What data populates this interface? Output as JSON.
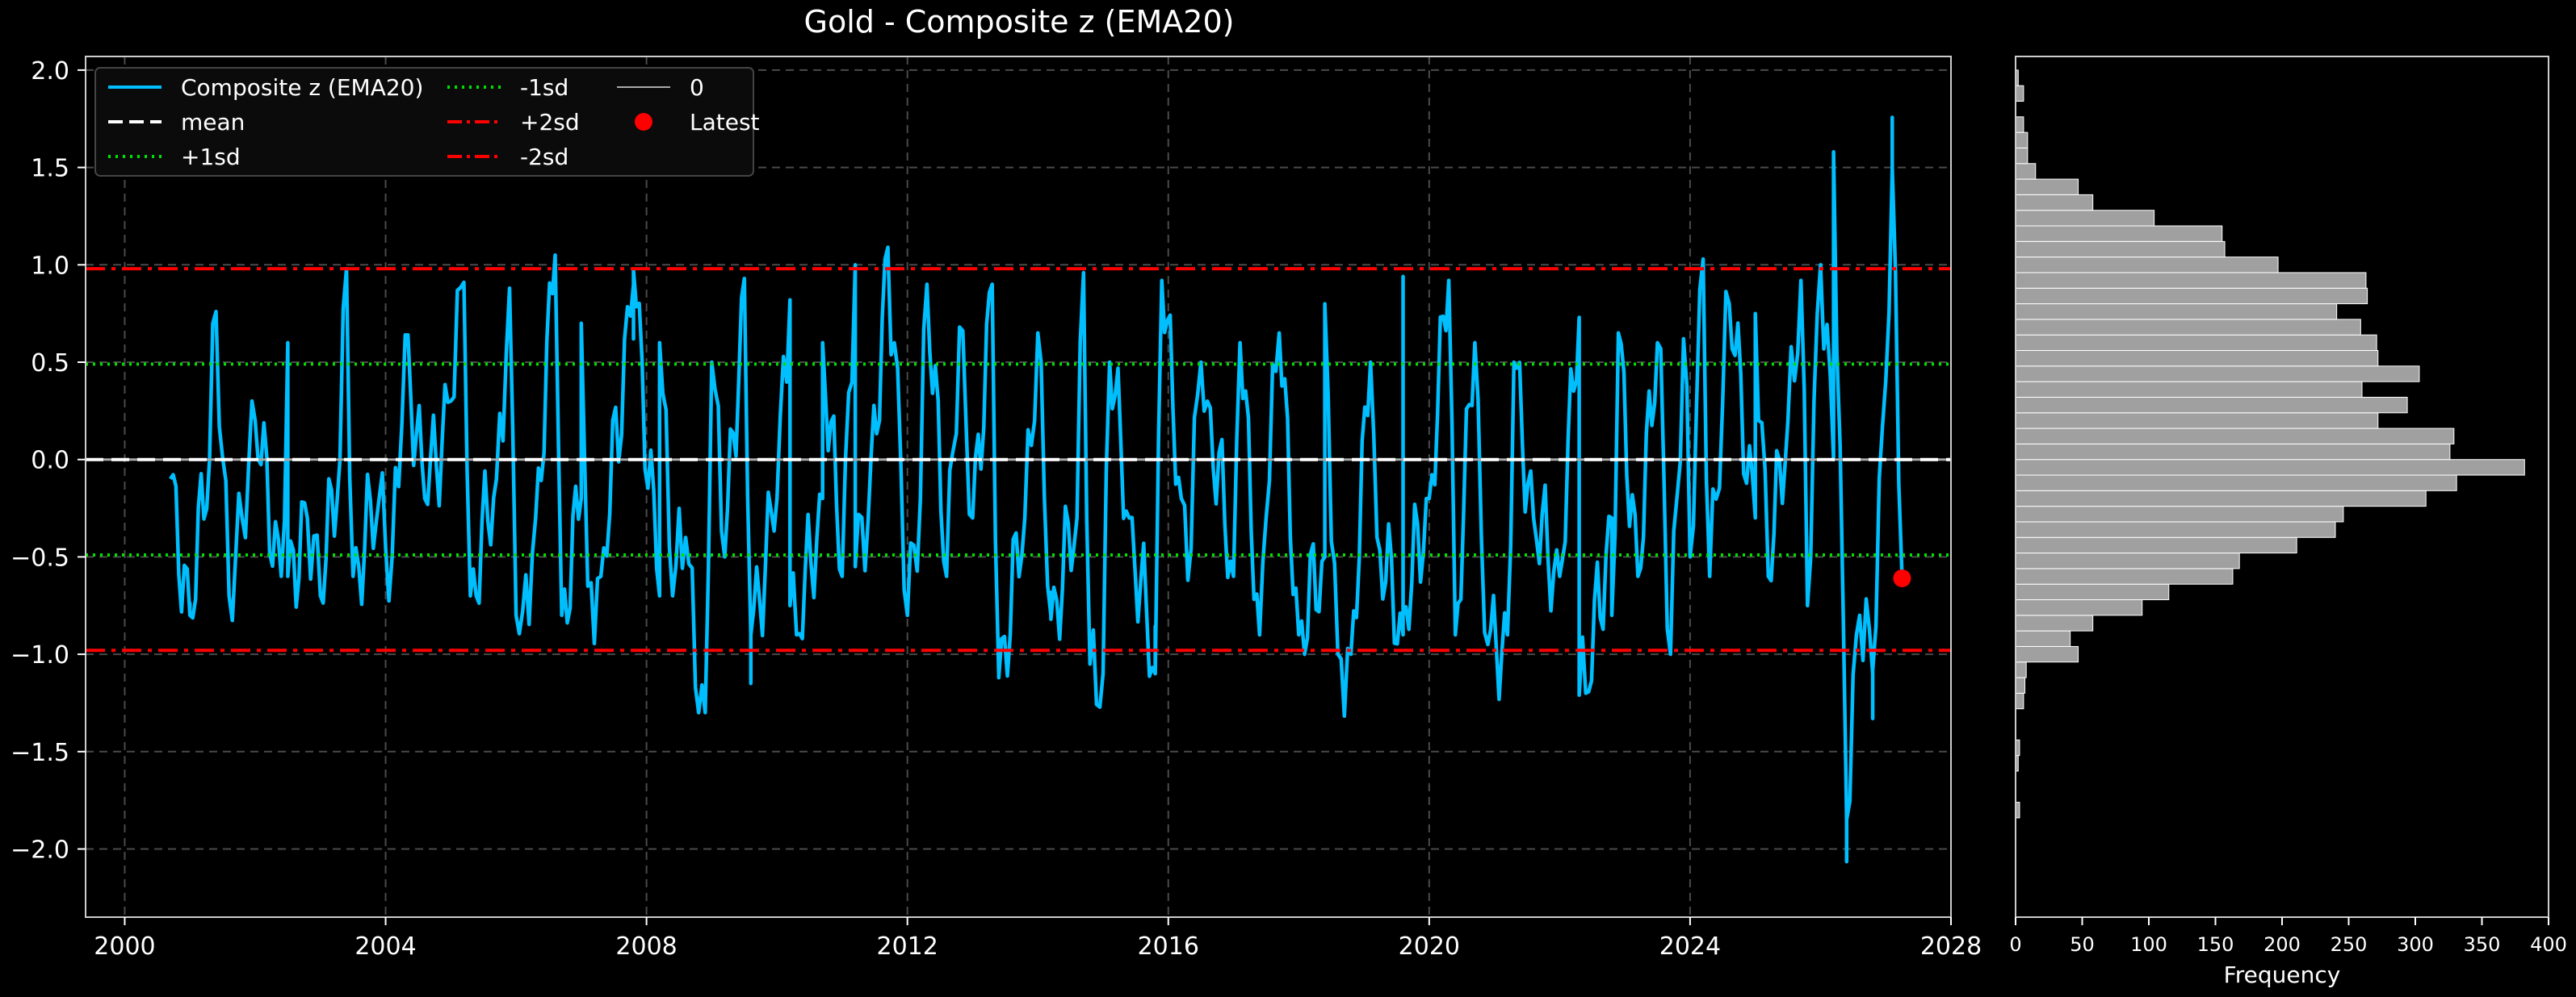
{
  "chart_data": [
    {
      "type": "line",
      "title": "Gold - Composite z (EMA20)",
      "xlabel": "",
      "ylabel": "",
      "xlim": [
        1999.4,
        2028.0
      ],
      "ylim": [
        -2.35,
        2.07
      ],
      "x_ticks": [
        2000,
        2004,
        2008,
        2012,
        2016,
        2020,
        2024,
        2028
      ],
      "y_ticks": [
        -2.0,
        -1.5,
        -1.0,
        -0.5,
        0.0,
        0.5,
        1.0,
        1.5,
        2.0
      ],
      "y_tick_labels": [
        "−2.0",
        "−1.5",
        "−1.0",
        "−0.5",
        "0.0",
        "0.5",
        "1.0",
        "1.5",
        "2.0"
      ],
      "grid": true,
      "legend_position": "top-left",
      "legend": [
        {
          "label": "Composite z (EMA20)",
          "style": "solid",
          "color": "#00bfff"
        },
        {
          "label": "mean",
          "style": "dashed",
          "color": "#ffffff"
        },
        {
          "label": "+1sd",
          "style": "dotted",
          "color": "#00e000"
        },
        {
          "label": "-1sd",
          "style": "dotted",
          "color": "#00e000"
        },
        {
          "label": "+2sd",
          "style": "dashdot",
          "color": "#ff0000"
        },
        {
          "label": "-2sd",
          "style": "dashdot",
          "color": "#ff0000"
        },
        {
          "label": "0",
          "style": "solid",
          "color": "#aaaaaa"
        },
        {
          "label": "Latest",
          "style": "marker",
          "color": "#ff0000"
        }
      ],
      "reference_lines": {
        "mean": 0.0,
        "plus_1sd": 0.49,
        "minus_1sd": -0.49,
        "plus_2sd": 0.98,
        "minus_2sd": -0.98,
        "zero": 0.0
      },
      "series": [
        {
          "name": "Composite z (EMA20)",
          "color": "#00bfff",
          "anchors": [
            [
              2000.7,
              -0.1
            ],
            [
              2001.0,
              -0.8
            ],
            [
              2001.3,
              0.0
            ],
            [
              2001.6,
              -0.7
            ],
            [
              2001.8,
              -0.3
            ],
            [
              2002.0,
              0.2
            ],
            [
              2002.4,
              -0.6
            ],
            [
              2002.8,
              -0.3
            ],
            [
              2003.0,
              -0.7
            ],
            [
              2003.3,
              0.0
            ],
            [
              2003.5,
              -0.6
            ],
            [
              2003.9,
              -0.2
            ],
            [
              2004.1,
              -0.5
            ],
            [
              2004.6,
              -0.2
            ],
            [
              2005.0,
              0.3
            ],
            [
              2005.3,
              -0.7
            ],
            [
              2005.7,
              -0.1
            ],
            [
              2006.0,
              -0.8
            ],
            [
              2006.3,
              -0.3
            ],
            [
              2006.7,
              -0.8
            ],
            [
              2007.0,
              -0.2
            ],
            [
              2007.3,
              -0.6
            ],
            [
              2007.8,
              0.9
            ],
            [
              2008.2,
              -0.7
            ],
            [
              2008.6,
              -0.4
            ],
            [
              2008.9,
              -1.3
            ],
            [
              2009.2,
              -0.5
            ],
            [
              2009.6,
              -0.9
            ],
            [
              2010.0,
              -0.2
            ],
            [
              2010.3,
              -0.9
            ],
            [
              2010.7,
              -0.2
            ],
            [
              2011.0,
              -0.6
            ],
            [
              2011.4,
              -0.3
            ],
            [
              2011.8,
              0.6
            ],
            [
              2012.2,
              -0.2
            ],
            [
              2012.6,
              -0.6
            ],
            [
              2013.0,
              -0.3
            ],
            [
              2013.4,
              -1.1
            ],
            [
              2013.8,
              -0.3
            ],
            [
              2014.2,
              -0.8
            ],
            [
              2014.6,
              -0.3
            ],
            [
              2015.0,
              -1.1
            ],
            [
              2015.4,
              -0.3
            ],
            [
              2015.8,
              -1.1
            ],
            [
              2016.2,
              -0.2
            ],
            [
              2016.6,
              0.3
            ],
            [
              2017.0,
              -0.6
            ],
            [
              2017.5,
              -0.3
            ],
            [
              2018.0,
              -0.9
            ],
            [
              2018.4,
              -0.5
            ],
            [
              2018.8,
              -1.0
            ],
            [
              2019.2,
              -0.4
            ],
            [
              2019.6,
              -0.9
            ],
            [
              2020.0,
              -0.2
            ],
            [
              2020.4,
              -0.9
            ],
            [
              2020.8,
              -0.4
            ],
            [
              2021.2,
              -0.9
            ],
            [
              2021.6,
              -0.3
            ],
            [
              2022.0,
              -0.6
            ],
            [
              2022.4,
              -1.2
            ],
            [
              2022.8,
              -0.3
            ],
            [
              2023.2,
              -0.6
            ],
            [
              2023.6,
              -0.1
            ],
            [
              2024.0,
              -0.5
            ],
            [
              2024.5,
              0.3
            ],
            [
              2025.0,
              -0.3
            ],
            [
              2025.5,
              0.2
            ],
            [
              2026.0,
              1.0
            ],
            [
              2026.2,
              0.0
            ],
            [
              2026.4,
              -1.85
            ],
            [
              2026.6,
              -0.8
            ],
            [
              2026.8,
              -1.1
            ],
            [
              2027.0,
              0.4
            ],
            [
              2027.1,
              1.5
            ],
            [
              2027.25,
              -0.6
            ]
          ],
          "peaks": [
            [
              2001.4,
              0.76
            ],
            [
              2002.5,
              0.6
            ],
            [
              2003.4,
              0.98
            ],
            [
              2004.3,
              0.64
            ],
            [
              2005.2,
              0.91
            ],
            [
              2005.9,
              0.88
            ],
            [
              2006.6,
              1.05
            ],
            [
              2007.0,
              0.7
            ],
            [
              2007.8,
              0.97
            ],
            [
              2008.2,
              0.6
            ],
            [
              2009.0,
              0.5
            ],
            [
              2009.5,
              0.93
            ],
            [
              2010.2,
              0.82
            ],
            [
              2010.7,
              0.6
            ],
            [
              2011.2,
              1.0
            ],
            [
              2011.7,
              1.09
            ],
            [
              2012.3,
              0.9
            ],
            [
              2012.8,
              0.68
            ],
            [
              2013.3,
              0.9
            ],
            [
              2014.0,
              0.65
            ],
            [
              2014.7,
              0.96
            ],
            [
              2015.1,
              0.5
            ],
            [
              2015.9,
              0.92
            ],
            [
              2016.5,
              0.5
            ],
            [
              2017.1,
              0.6
            ],
            [
              2017.7,
              0.65
            ],
            [
              2018.4,
              0.8
            ],
            [
              2019.1,
              0.5
            ],
            [
              2019.6,
              0.94
            ],
            [
              2020.3,
              0.92
            ],
            [
              2020.7,
              0.6
            ],
            [
              2021.3,
              0.5
            ],
            [
              2022.3,
              0.73
            ],
            [
              2022.9,
              0.65
            ],
            [
              2023.5,
              0.6
            ],
            [
              2023.9,
              0.62
            ],
            [
              2024.2,
              1.03
            ],
            [
              2024.6,
              0.8
            ],
            [
              2025.0,
              0.75
            ],
            [
              2025.7,
              0.92
            ],
            [
              2026.2,
              1.58
            ],
            [
              2027.1,
              1.5
            ]
          ],
          "troughs": [
            [
              2001.0,
              -0.8
            ],
            [
              2002.5,
              -0.6
            ],
            [
              2004.0,
              -0.45
            ],
            [
              2006.1,
              -0.78
            ],
            [
              2007.1,
              -0.65
            ],
            [
              2008.4,
              -0.7
            ],
            [
              2008.8,
              -1.3
            ],
            [
              2009.6,
              -0.9
            ],
            [
              2010.2,
              -0.75
            ],
            [
              2011.2,
              -0.55
            ],
            [
              2012.0,
              -0.8
            ],
            [
              2013.4,
              -1.12
            ],
            [
              2014.2,
              -0.82
            ],
            [
              2014.8,
              -1.05
            ],
            [
              2015.8,
              -1.1
            ],
            [
              2016.3,
              -0.62
            ],
            [
              2017.4,
              -0.9
            ],
            [
              2018.6,
              -1.0
            ],
            [
              2019.6,
              -0.8
            ],
            [
              2020.9,
              -0.95
            ],
            [
              2022.3,
              -1.21
            ],
            [
              2022.8,
              -0.8
            ],
            [
              2023.7,
              -1.0
            ],
            [
              2024.3,
              -0.6
            ],
            [
              2025.2,
              -0.6
            ],
            [
              2025.8,
              -0.75
            ],
            [
              2026.4,
              -1.85
            ],
            [
              2026.8,
              -1.08
            ]
          ]
        }
      ],
      "latest_marker": {
        "label": "Latest",
        "x": 2027.25,
        "y": -0.61,
        "color": "#ff0000"
      }
    },
    {
      "type": "bar",
      "orientation": "horizontal",
      "xlabel": "Frequency",
      "xlim": [
        0,
        400
      ],
      "x_ticks": [
        0,
        50,
        100,
        150,
        200,
        250,
        300,
        350,
        400
      ],
      "ylim": [
        -2.35,
        2.07
      ],
      "bar_color": "#a0a0a0",
      "bins": [
        {
          "y0": -1.84,
          "y1": -1.76,
          "count": 3
        },
        {
          "y0": -1.6,
          "y1": -1.52,
          "count": 2
        },
        {
          "y0": -1.52,
          "y1": -1.44,
          "count": 3
        },
        {
          "y0": -1.28,
          "y1": -1.2,
          "count": 6
        },
        {
          "y0": -1.2,
          "y1": -1.12,
          "count": 7
        },
        {
          "y0": -1.12,
          "y1": -1.04,
          "count": 8
        },
        {
          "y0": -1.04,
          "y1": -0.96,
          "count": 47
        },
        {
          "y0": -0.96,
          "y1": -0.88,
          "count": 41
        },
        {
          "y0": -0.88,
          "y1": -0.8,
          "count": 58
        },
        {
          "y0": -0.8,
          "y1": -0.72,
          "count": 95
        },
        {
          "y0": -0.72,
          "y1": -0.64,
          "count": 115
        },
        {
          "y0": -0.64,
          "y1": -0.56,
          "count": 163
        },
        {
          "y0": -0.56,
          "y1": -0.48,
          "count": 168
        },
        {
          "y0": -0.48,
          "y1": -0.4,
          "count": 211
        },
        {
          "y0": -0.4,
          "y1": -0.32,
          "count": 240
        },
        {
          "y0": -0.32,
          "y1": -0.24,
          "count": 246
        },
        {
          "y0": -0.24,
          "y1": -0.16,
          "count": 308
        },
        {
          "y0": -0.16,
          "y1": -0.08,
          "count": 331
        },
        {
          "y0": -0.08,
          "y1": 0.0,
          "count": 382
        },
        {
          "y0": 0.0,
          "y1": 0.08,
          "count": 326
        },
        {
          "y0": 0.08,
          "y1": 0.16,
          "count": 329
        },
        {
          "y0": 0.16,
          "y1": 0.24,
          "count": 272
        },
        {
          "y0": 0.24,
          "y1": 0.32,
          "count": 294
        },
        {
          "y0": 0.32,
          "y1": 0.4,
          "count": 260
        },
        {
          "y0": 0.4,
          "y1": 0.48,
          "count": 303
        },
        {
          "y0": 0.48,
          "y1": 0.56,
          "count": 272
        },
        {
          "y0": 0.56,
          "y1": 0.64,
          "count": 271
        },
        {
          "y0": 0.64,
          "y1": 0.72,
          "count": 259
        },
        {
          "y0": 0.72,
          "y1": 0.8,
          "count": 241
        },
        {
          "y0": 0.8,
          "y1": 0.88,
          "count": 264
        },
        {
          "y0": 0.88,
          "y1": 0.96,
          "count": 263
        },
        {
          "y0": 0.96,
          "y1": 1.04,
          "count": 197
        },
        {
          "y0": 1.04,
          "y1": 1.12,
          "count": 157
        },
        {
          "y0": 1.12,
          "y1": 1.2,
          "count": 155
        },
        {
          "y0": 1.2,
          "y1": 1.28,
          "count": 104
        },
        {
          "y0": 1.28,
          "y1": 1.36,
          "count": 58
        },
        {
          "y0": 1.36,
          "y1": 1.44,
          "count": 47
        },
        {
          "y0": 1.44,
          "y1": 1.52,
          "count": 15
        },
        {
          "y0": 1.52,
          "y1": 1.6,
          "count": 9
        },
        {
          "y0": 1.6,
          "y1": 1.68,
          "count": 9
        },
        {
          "y0": 1.68,
          "y1": 1.76,
          "count": 6
        },
        {
          "y0": 1.84,
          "y1": 1.92,
          "count": 6
        },
        {
          "y0": 1.92,
          "y1": 2.0,
          "count": 2
        }
      ]
    }
  ]
}
